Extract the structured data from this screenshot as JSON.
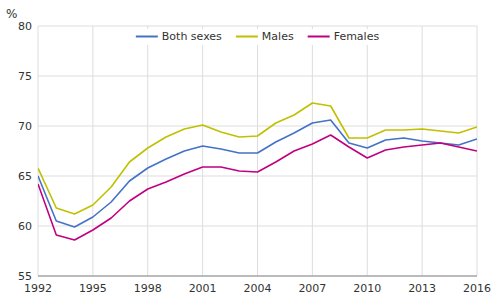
{
  "chart_data": {
    "type": "line",
    "y_label": "%",
    "x": [
      1992,
      1993,
      1994,
      1995,
      1996,
      1997,
      1998,
      1999,
      2000,
      2001,
      2002,
      2003,
      2004,
      2005,
      2006,
      2007,
      2008,
      2009,
      2010,
      2011,
      2012,
      2013,
      2014,
      2015,
      2016
    ],
    "series": [
      {
        "name": "Both sexes",
        "color": "#4472C4",
        "values": [
          65.0,
          60.5,
          59.9,
          60.9,
          62.4,
          64.5,
          65.8,
          66.7,
          67.5,
          68.0,
          67.7,
          67.3,
          67.3,
          68.4,
          69.3,
          70.3,
          70.6,
          68.3,
          67.8,
          68.6,
          68.8,
          68.5,
          68.3,
          68.1,
          68.7
        ]
      },
      {
        "name": "Males",
        "color": "#C0C000",
        "values": [
          65.8,
          61.8,
          61.2,
          62.1,
          63.9,
          66.4,
          67.8,
          68.9,
          69.7,
          70.1,
          69.4,
          68.9,
          69.0,
          70.3,
          71.1,
          72.3,
          72.0,
          68.8,
          68.8,
          69.6,
          69.6,
          69.7,
          69.5,
          69.3,
          69.9
        ]
      },
      {
        "name": "Females",
        "color": "#C00080",
        "values": [
          64.2,
          59.1,
          58.6,
          59.6,
          60.8,
          62.5,
          63.7,
          64.4,
          65.2,
          65.9,
          65.9,
          65.5,
          65.4,
          66.4,
          67.5,
          68.2,
          69.1,
          67.9,
          66.8,
          67.6,
          67.9,
          68.1,
          68.3,
          67.9,
          67.5
        ]
      }
    ],
    "xlim": [
      1992,
      2016
    ],
    "xticks": [
      1992,
      1995,
      1998,
      2001,
      2004,
      2007,
      2010,
      2013,
      2016
    ],
    "ylim": [
      55,
      80
    ],
    "yticks": [
      55,
      60,
      65,
      70,
      75,
      80
    ],
    "grid": true,
    "legend": "top"
  }
}
